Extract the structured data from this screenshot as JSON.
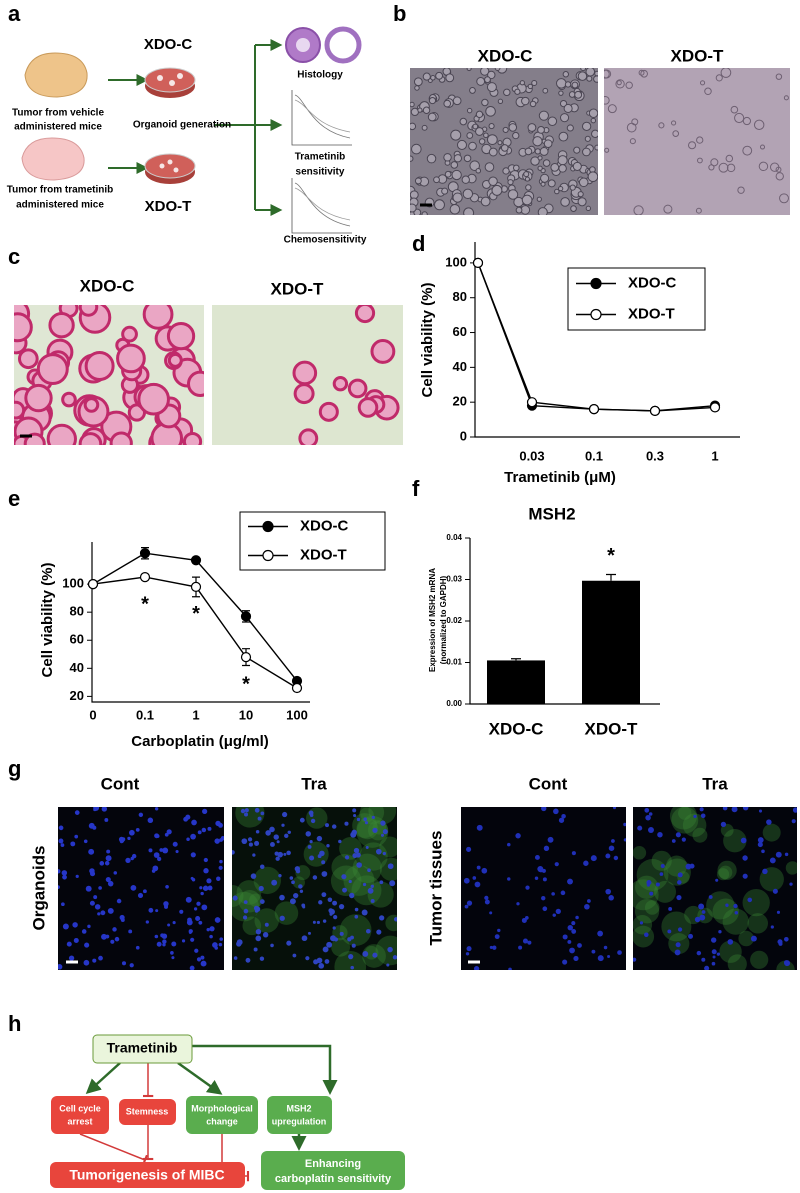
{
  "panel_labels": [
    "a",
    "b",
    "c",
    "d",
    "e",
    "f",
    "g",
    "h"
  ],
  "panel_a": {
    "tumor_vehicle": [
      "Tumor from vehicle",
      "administered mice"
    ],
    "tumor_trametinib": [
      "Tumor from trametinib",
      "administered mice"
    ],
    "xdo_c": "XDO-C",
    "xdo_t": "XDO-T",
    "organoid_generation": "Organoid generation",
    "histology": "Histology",
    "trametinib_sensitivity": [
      "Trametinib",
      "sensitivity"
    ],
    "chemosensitivity": "Chemosensitivity"
  },
  "panel_b": {
    "labels": [
      "XDO-C",
      "XDO-T"
    ]
  },
  "panel_c": {
    "labels": [
      "XDO-C",
      "XDO-T"
    ]
  },
  "panel_g": {
    "column_labels": [
      "Cont",
      "Tra",
      "Cont",
      "Tra"
    ],
    "row_labels": [
      "Organoids",
      "Tumor tissues"
    ]
  },
  "panel_h": {
    "nodes": [
      {
        "lines": [
          "Trametinib"
        ]
      },
      {
        "lines": [
          "Cell cycle",
          "arrest"
        ]
      },
      {
        "lines": [
          "Stemness"
        ]
      },
      {
        "lines": [
          "Morphological",
          "change"
        ]
      },
      {
        "lines": [
          "MSH2",
          "upregulation"
        ]
      },
      {
        "lines": [
          "Tumorigenesis of MIBC"
        ]
      },
      {
        "lines": [
          "Enhancing",
          "carboplatin sensitivity"
        ]
      }
    ]
  },
  "chart_data": [
    {
      "type": "line",
      "xlabel": "Trametinib (μM)",
      "ylabel": "Cell viability (%)",
      "categories": [
        null,
        "0.03",
        "0.1",
        "0.3",
        "1"
      ],
      "series": [
        {
          "name": "XDO-C",
          "color": "#000000",
          "marker": "filled",
          "values": [
            100,
            18,
            16,
            15,
            18
          ]
        },
        {
          "name": "XDO-T",
          "color": "#000000",
          "marker": "open",
          "values": [
            100,
            20,
            16,
            15,
            17
          ]
        }
      ],
      "ylim": [
        0,
        112
      ],
      "yticks": [
        0,
        20,
        40,
        60,
        80,
        100
      ],
      "legend": "upper right"
    },
    {
      "type": "line",
      "xlabel": "Carboplatin (μg/ml)",
      "ylabel": "Cell viability (%)",
      "categories": [
        "0",
        "0.1",
        "1",
        "10",
        "100"
      ],
      "series": [
        {
          "name": "XDO-C",
          "color": "#000000",
          "marker": "filled",
          "values": [
            100,
            122,
            117,
            77,
            31
          ],
          "errors": [
            0,
            4,
            1,
            4,
            2
          ]
        },
        {
          "name": "XDO-T",
          "color": "#000000",
          "marker": "open",
          "values": [
            100,
            105,
            98,
            48,
            26
          ],
          "errors": [
            0,
            1,
            7,
            6,
            1
          ]
        }
      ],
      "ylim": [
        16,
        130
      ],
      "yticks": [
        20,
        40,
        60,
        80,
        100
      ],
      "annotations": [
        {
          "text": "*",
          "category": "0.1"
        },
        {
          "text": "*",
          "category": "1"
        },
        {
          "text": "*",
          "category": "10"
        }
      ],
      "legend": "upper right"
    },
    {
      "type": "bar",
      "title": "MSH2",
      "ylabel": [
        "Expression of MSH2 mRNA",
        "(normalized to GAPDH)"
      ],
      "categories": [
        "XDO-C",
        "XDO-T"
      ],
      "values": [
        0.0105,
        0.0297
      ],
      "errors": [
        0.0004,
        0.0015
      ],
      "color": "#000000",
      "ylim": [
        0,
        0.04
      ],
      "yticks": [
        {
          "value": 0,
          "label": "0.00"
        },
        0.01,
        0.02,
        0.03,
        0.04
      ],
      "annotations": [
        {
          "text": "*",
          "category": "XDO-T"
        }
      ]
    }
  ]
}
